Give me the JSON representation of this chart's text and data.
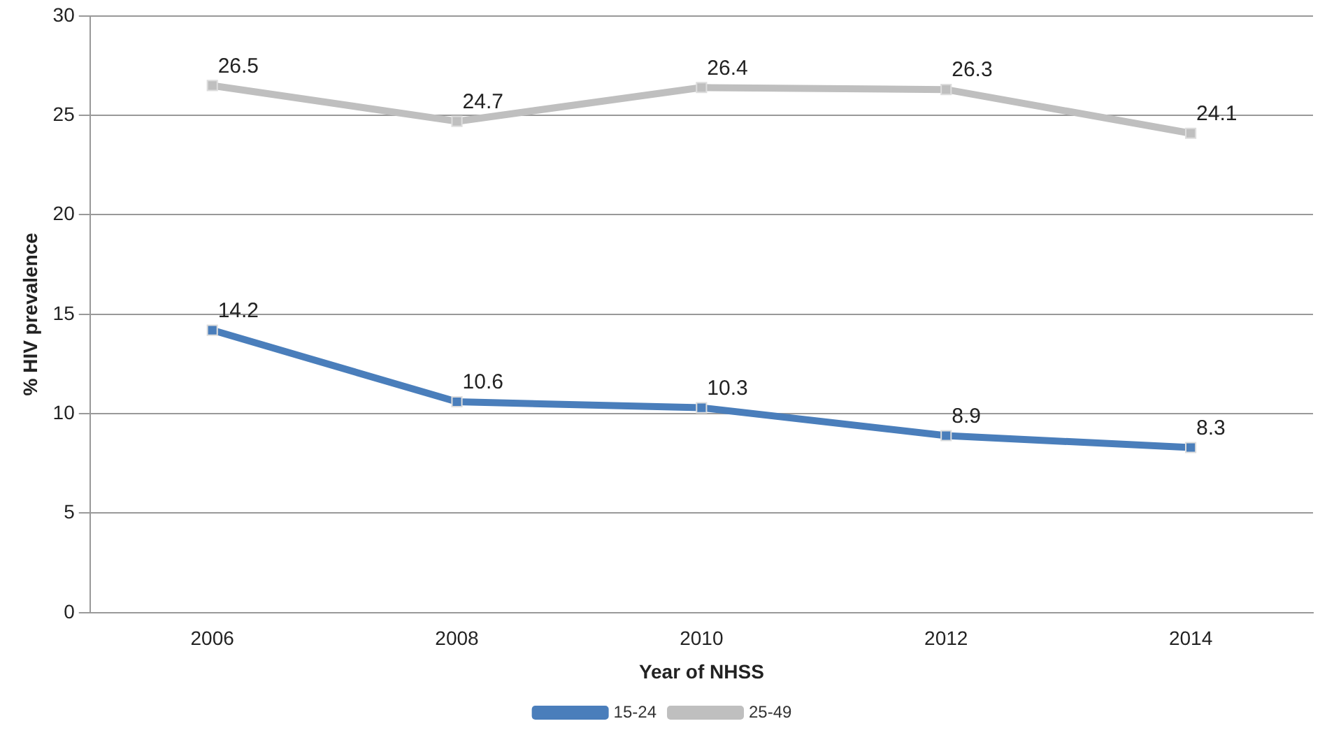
{
  "chart_data": {
    "type": "line",
    "xlabel": "Year of NHSS",
    "ylabel": "% HIV prevalence",
    "categories": [
      "2006",
      "2008",
      "2010",
      "2012",
      "2014"
    ],
    "series": [
      {
        "name": "15-24",
        "color": "#4a7ebb",
        "values": [
          14.2,
          10.6,
          10.3,
          8.9,
          8.3
        ]
      },
      {
        "name": "25-49",
        "color": "#bfbfbf",
        "values": [
          26.5,
          24.7,
          26.4,
          26.3,
          24.1
        ]
      }
    ],
    "ylim": [
      0,
      30
    ],
    "yticks": [
      0,
      5,
      10,
      15,
      20,
      25,
      30
    ],
    "grid": "y",
    "legend": "bottom",
    "marker": "square",
    "data_labels": true
  }
}
